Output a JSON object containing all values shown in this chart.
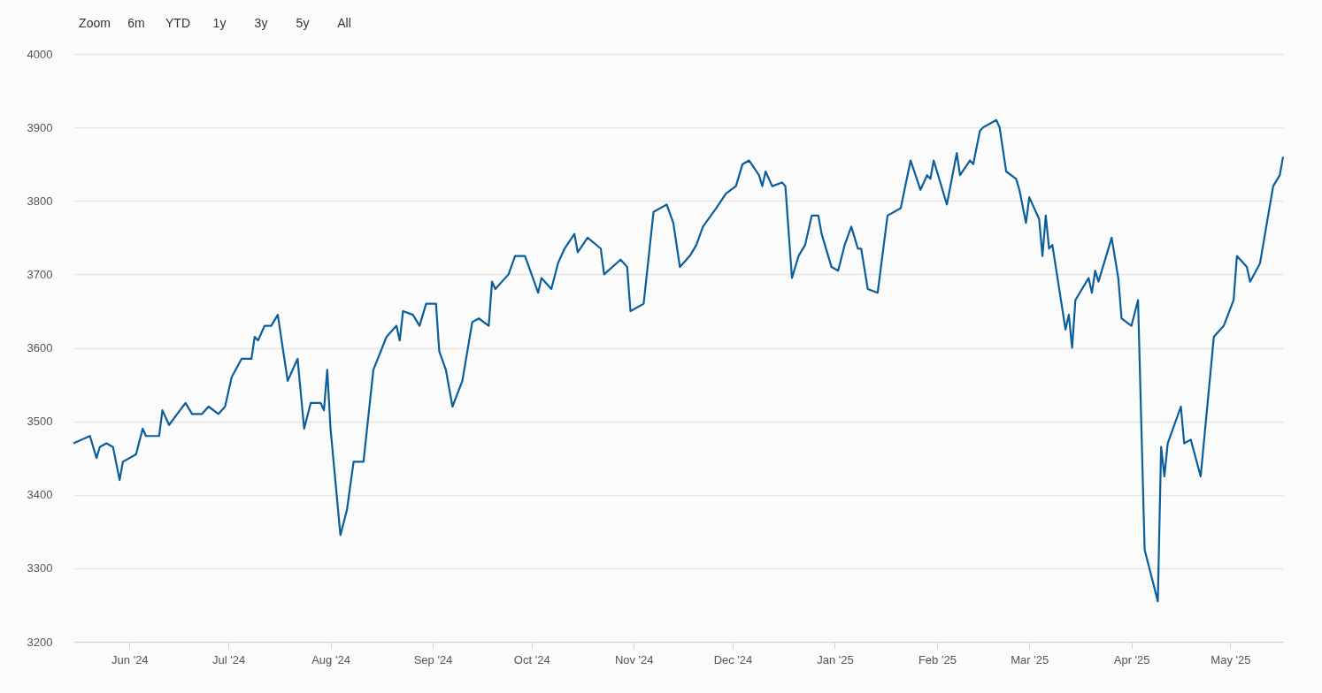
{
  "chart_data": {
    "type": "line",
    "annotations": [
      "Zoom",
      "6m",
      "YTD",
      "1y",
      "3y",
      "5y",
      "All"
    ],
    "x": [
      "2024-05-15",
      "2024-05-20",
      "2024-05-22",
      "2024-05-23",
      "2024-05-25",
      "2024-05-27",
      "2024-05-29",
      "2024-05-30",
      "2024-06-03",
      "2024-06-05",
      "2024-06-06",
      "2024-06-10",
      "2024-06-11",
      "2024-06-13",
      "2024-06-18",
      "2024-06-20",
      "2024-06-23",
      "2024-06-25",
      "2024-06-28",
      "2024-06-30",
      "2024-07-02",
      "2024-07-05",
      "2024-07-08",
      "2024-07-09",
      "2024-07-10",
      "2024-07-12",
      "2024-07-14",
      "2024-07-16",
      "2024-07-19",
      "2024-07-22",
      "2024-07-24",
      "2024-07-26",
      "2024-07-29",
      "2024-07-30",
      "2024-07-31",
      "2024-08-01",
      "2024-08-04",
      "2024-08-06",
      "2024-08-08",
      "2024-08-11",
      "2024-08-14",
      "2024-08-18",
      "2024-08-21",
      "2024-08-22",
      "2024-08-23",
      "2024-08-26",
      "2024-08-28",
      "2024-08-30",
      "2024-09-02",
      "2024-09-03",
      "2024-09-05",
      "2024-09-07",
      "2024-09-10",
      "2024-09-13",
      "2024-09-15",
      "2024-09-18",
      "2024-09-19",
      "2024-09-20",
      "2024-09-24",
      "2024-09-26",
      "2024-09-29",
      "2024-10-03",
      "2024-10-04",
      "2024-10-07",
      "2024-10-09",
      "2024-10-11",
      "2024-10-14",
      "2024-10-15",
      "2024-10-18",
      "2024-10-22",
      "2024-10-23",
      "2024-10-28",
      "2024-10-30",
      "2024-10-31",
      "2024-11-04",
      "2024-11-07",
      "2024-11-11",
      "2024-11-13",
      "2024-11-15",
      "2024-11-18",
      "2024-11-20",
      "2024-11-22",
      "2024-11-26",
      "2024-11-29",
      "2024-12-02",
      "2024-12-04",
      "2024-12-06",
      "2024-12-09",
      "2024-12-10",
      "2024-12-11",
      "2024-12-13",
      "2024-12-16",
      "2024-12-17",
      "2024-12-19",
      "2024-12-21",
      "2024-12-23",
      "2024-12-25",
      "2024-12-27",
      "2024-12-28",
      "2024-12-31",
      "2025-01-02",
      "2025-01-04",
      "2025-01-06",
      "2025-01-08",
      "2025-01-09",
      "2025-01-11",
      "2025-01-14",
      "2025-01-16",
      "2025-01-17",
      "2025-01-21",
      "2025-01-24",
      "2025-01-27",
      "2025-01-29",
      "2025-01-30",
      "2025-01-31",
      "2025-02-04",
      "2025-02-07",
      "2025-02-08",
      "2025-02-11",
      "2025-02-12",
      "2025-02-14",
      "2025-02-15",
      "2025-02-17",
      "2025-02-19",
      "2025-02-20",
      "2025-02-22",
      "2025-02-25",
      "2025-02-26",
      "2025-02-28",
      "2025-03-01",
      "2025-03-04",
      "2025-03-05",
      "2025-03-06",
      "2025-03-07",
      "2025-03-08",
      "2025-03-12",
      "2025-03-13",
      "2025-03-14",
      "2025-03-15",
      "2025-03-19",
      "2025-03-20",
      "2025-03-21",
      "2025-03-22",
      "2025-03-26",
      "2025-03-28",
      "2025-03-29",
      "2025-04-01",
      "2025-04-03",
      "2025-04-05",
      "2025-04-09",
      "2025-04-10",
      "2025-04-11",
      "2025-04-12",
      "2025-04-16",
      "2025-04-17",
      "2025-04-19",
      "2025-04-22",
      "2025-04-26",
      "2025-04-29",
      "2025-05-02",
      "2025-05-03",
      "2025-05-06",
      "2025-05-07",
      "2025-05-10",
      "2025-05-14",
      "2025-05-16",
      "2025-05-17"
    ],
    "series": [
      {
        "color": "#0b5e9c",
        "values": [
          3470,
          3480,
          3450,
          3465,
          3470,
          3465,
          3420,
          3445,
          3455,
          3490,
          3480,
          3480,
          3515,
          3495,
          3525,
          3510,
          3510,
          3520,
          3510,
          3520,
          3560,
          3585,
          3585,
          3615,
          3610,
          3630,
          3630,
          3645,
          3555,
          3585,
          3490,
          3525,
          3525,
          3515,
          3570,
          3490,
          3345,
          3380,
          3445,
          3445,
          3570,
          3615,
          3630,
          3610,
          3650,
          3645,
          3630,
          3660,
          3660,
          3595,
          3570,
          3520,
          3555,
          3635,
          3640,
          3630,
          3690,
          3680,
          3700,
          3725,
          3725,
          3675,
          3695,
          3680,
          3715,
          3735,
          3755,
          3730,
          3750,
          3735,
          3700,
          3720,
          3710,
          3650,
          3660,
          3785,
          3795,
          3770,
          3710,
          3725,
          3740,
          3765,
          3790,
          3810,
          3820,
          3850,
          3855,
          3835,
          3820,
          3840,
          3820,
          3825,
          3820,
          3695,
          3725,
          3740,
          3780,
          3780,
          3755,
          3710,
          3705,
          3740,
          3765,
          3735,
          3735,
          3680,
          3675,
          3745,
          3780,
          3790,
          3855,
          3815,
          3835,
          3830,
          3855,
          3795,
          3865,
          3835,
          3855,
          3850,
          3895,
          3900,
          3905,
          3910,
          3900,
          3840,
          3830,
          3815,
          3770,
          3805,
          3775,
          3725,
          3780,
          3735,
          3740,
          3625,
          3645,
          3600,
          3665,
          3695,
          3675,
          3705,
          3690,
          3750,
          3695,
          3640,
          3630,
          3665,
          3325,
          3255,
          3465,
          3425,
          3470,
          3520,
          3470,
          3475,
          3425,
          3615,
          3630,
          3665,
          3725,
          3710,
          3690,
          3715,
          3820,
          3835,
          3860
        ]
      }
    ],
    "xlim": [
      "2024-05-15",
      "2025-05-17"
    ],
    "xticks": [
      {
        "value": "2024-06-01",
        "label": "Jun '24"
      },
      {
        "value": "2024-07-01",
        "label": "Jul '24"
      },
      {
        "value": "2024-08-01",
        "label": "Aug '24"
      },
      {
        "value": "2024-09-01",
        "label": "Sep '24"
      },
      {
        "value": "2024-10-01",
        "label": "Oct '24"
      },
      {
        "value": "2024-11-01",
        "label": "Nov '24"
      },
      {
        "value": "2024-12-01",
        "label": "Dec '24"
      },
      {
        "value": "2025-01-01",
        "label": "Jan '25"
      },
      {
        "value": "2025-02-01",
        "label": "Feb '25"
      },
      {
        "value": "2025-03-01",
        "label": "Mar '25"
      },
      {
        "value": "2025-04-01",
        "label": "Apr '25"
      },
      {
        "value": "2025-05-01",
        "label": "May '25"
      }
    ],
    "ylim": [
      3200,
      4000
    ],
    "yticks": [
      3200,
      3300,
      3400,
      3500,
      3600,
      3700,
      3800,
      3900,
      4000
    ],
    "grid": "y",
    "marker": "none",
    "line_style": "solid"
  }
}
